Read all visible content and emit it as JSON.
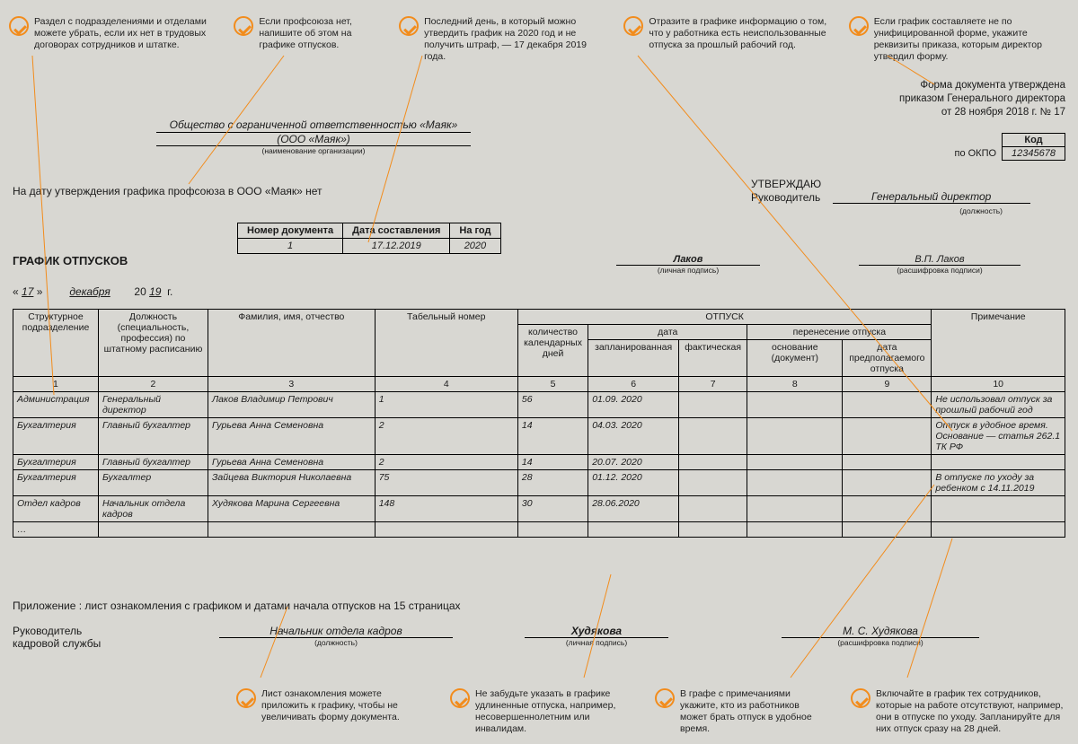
{
  "callouts_top": [
    "Раздел с подразделениями и отделами можете убрать, если их нет в трудовых договорах сотрудников и штатке.",
    "Если профсоюза нет, напишите об этом на графике отпусков.",
    "Последний день, в который можно утвердить график на 2020 год и не получить штраф, — 17 декабря 2019 года.",
    "Отразите в графике информацию о том, что у работника есть неиспользованные отпуска за прошлый рабочий год.",
    "Если график составляете не по унифицированной форме, укажите реквизиты приказа, которым директор утвердил форму."
  ],
  "callouts_bottom": [
    "Лист ознакомления можете приложить к графику, чтобы не увеличивать форму документа.",
    "Не забудьте указать в графике удлиненные отпуска, например, несовершеннолетним или инвалидам.",
    "В графе с примечаниями укажите, кто из работников может брать отпуск в удобное время.",
    "Включайте в график тех сотрудников, которые на работе отсутствуют, например, они в отпуске по уходу. Запланируйте для них отпуск сразу на 28 дней."
  ],
  "org_name": "Общество с ограниченной ответственностью «Маяк»",
  "org_name2": "(ООО «Маяк»)",
  "org_cap": "(наименование организации)",
  "form_approved": [
    "Форма документа утверждена",
    "приказом Генерального директора",
    "от 28 ноября 2018 г. № 17"
  ],
  "kod_label": "Код",
  "okpo_label": "по ОКПО",
  "okpo_value": "12345678",
  "approve_word": "УТВЕРЖДАЮ",
  "approve_head": "Руководитель",
  "approve_pos": "Генеральный директор",
  "approve_pos_cap": "(должность)",
  "no_union": "На дату утверждения графика профсоюза в ООО «Маяк» нет",
  "mini_headers": [
    "Номер документа",
    "Дата составления",
    "На год"
  ],
  "mini_values": [
    "1",
    "17.12.2019",
    "2020"
  ],
  "doc_title": "ГРАФИК ОТПУСКОВ",
  "sign_surname": "Лаков",
  "sign_surname_cap": "(личная подпись)",
  "sign_decipher": "В.П. Лаков",
  "sign_decipher_cap": "(расшифровка подписи)",
  "date_day": "17",
  "date_month": "декабря",
  "date_year": "19",
  "date_suffix": "г.",
  "headers": {
    "h1": "Структурное подразделение",
    "h2": "Должность (специальность, профессия) по штатному расписанию",
    "h3": "Фамилия, имя, отчество",
    "h4": "Табельный номер",
    "h5": "ОТПУСК",
    "h6": "Примечание",
    "h5a": "количество календарных дней",
    "h5b": "дата",
    "h5c": "перенесение отпуска",
    "h5b1": "запланированная",
    "h5b2": "фактическая",
    "h5c1": "основание (документ)",
    "h5c2": "дата предполагаемого отпуска"
  },
  "nums": [
    "1",
    "2",
    "3",
    "4",
    "5",
    "6",
    "7",
    "8",
    "9",
    "10"
  ],
  "rows": [
    {
      "c1": "Администрация",
      "c2": "Генеральный директор",
      "c3": "Лаков Владимир Петрович",
      "c4": "1",
      "c5": "56",
      "c6": "01.09. 2020",
      "c7": "",
      "c8": "",
      "c9": "",
      "c10": "Не использовал отпуск за прошлый рабочий год"
    },
    {
      "c1": "Бухгалтерия",
      "c2": "Главный бухгалтер",
      "c3": "Гурьева Анна Семеновна",
      "c4": "2",
      "c5": "14",
      "c6": "04.03. 2020",
      "c7": "",
      "c8": "",
      "c9": "",
      "c10": "Отпуск в удобное время. Основание — статья 262.1 ТК РФ"
    },
    {
      "c1": "Бухгалтерия",
      "c2": "Главный бухгалтер",
      "c3": "Гурьева Анна Семеновна",
      "c4": "2",
      "c5": "14",
      "c6": "20.07. 2020",
      "c7": "",
      "c8": "",
      "c9": "",
      "c10": ""
    },
    {
      "c1": "Бухгалтерия",
      "c2": "Бухгалтер",
      "c3": "Зайцева Виктория Николаевна",
      "c4": "75",
      "c5": "28",
      "c6": "01.12. 2020",
      "c7": "",
      "c8": "",
      "c9": "",
      "c10": "В отпуске по уходу за ребенком с 14.11.2019"
    },
    {
      "c1": "Отдел кадров",
      "c2": "Начальник отдела кадров",
      "c3": "Худякова Марина Сергеевна",
      "c4": "148",
      "c5": "30",
      "c6": "28.06.2020",
      "c7": "",
      "c8": "",
      "c9": "",
      "c10": ""
    }
  ],
  "ellipsis": "…",
  "appendix": "Приложение : лист ознакомления с графиком и датами начала отпусков на 15 страницах",
  "hr_head": "Руководитель кадровой службы",
  "hr_pos": "Начальник отдела кадров",
  "hr_pos_cap": "(должность)",
  "hr_sign": "Худякова",
  "hr_sign_cap": "(личная подпись)",
  "hr_dec": "М. С. Худякова",
  "hr_dec_cap": "(расшифровка подписи)"
}
